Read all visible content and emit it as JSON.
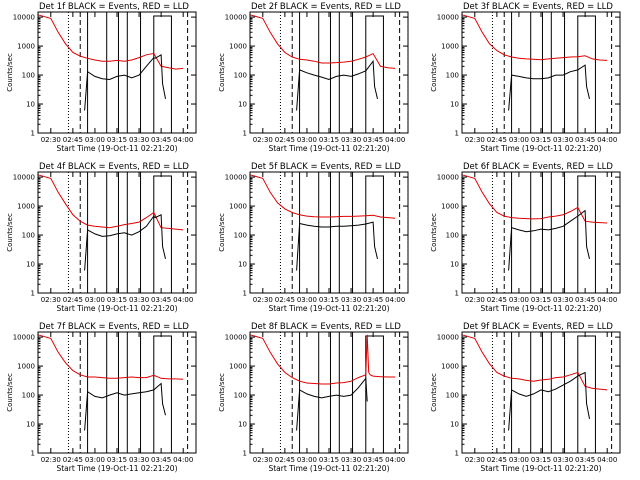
{
  "figure": {
    "xlabel": "Start Time (19-Oct-11 02:21:20)",
    "ylabel": "Counts/sec",
    "x_ticks": [
      "02:30",
      "02:45",
      "03:00",
      "03:15",
      "03:30",
      "03:45",
      "04:00"
    ],
    "y_ticks": [
      "1",
      "10",
      "100",
      "1000",
      "10000"
    ],
    "colors": {
      "events": "#000000",
      "lld": "#e00000"
    }
  },
  "chart_data": [
    {
      "type": "line",
      "title": "Det 1f BLACK = Events, RED = LLD",
      "xlabel": "Start Time (19-Oct-11 02:21:20)",
      "ylabel": "Counts/sec",
      "xlim": [
        -8.7,
        98.7
      ],
      "ylim": [
        1,
        15000
      ],
      "yscale": "log",
      "dotted": [
        12
      ],
      "dashed": [
        20,
        93
      ],
      "solid": [
        25,
        38,
        46,
        52,
        61
      ],
      "bracket": [
        70,
        82
      ],
      "series": [
        {
          "name": "LLD",
          "x": [
            -8.7,
            0,
            5,
            10,
            15,
            20,
            25,
            30,
            35,
            40,
            45,
            50,
            55,
            60,
            65,
            70,
            75,
            80,
            85,
            90
          ],
          "values": [
            12000,
            9000,
            3000,
            1200,
            600,
            450,
            380,
            330,
            300,
            300,
            320,
            300,
            330,
            400,
            500,
            560,
            200,
            180,
            160,
            170
          ]
        },
        {
          "name": "Events",
          "x": [
            23,
            25,
            30,
            35,
            40,
            45,
            50,
            55,
            60,
            65,
            70,
            71,
            75,
            76,
            78
          ],
          "values": [
            6,
            130,
            90,
            75,
            70,
            90,
            100,
            80,
            100,
            200,
            400,
            380,
            500,
            50,
            15
          ]
        }
      ]
    },
    {
      "type": "line",
      "title": "Det 2f BLACK = Events, RED = LLD",
      "xlabel": "Start Time (19-Oct-11 02:21:20)",
      "ylabel": "Counts/sec",
      "xlim": [
        -8.7,
        98.7
      ],
      "ylim": [
        1,
        15000
      ],
      "yscale": "log",
      "dotted": [
        12
      ],
      "dashed": [
        20,
        93
      ],
      "solid": [
        25,
        38,
        46,
        52,
        61
      ],
      "bracket": [
        70,
        82
      ],
      "series": [
        {
          "name": "LLD",
          "x": [
            -8.7,
            0,
            5,
            10,
            15,
            20,
            25,
            30,
            35,
            40,
            45,
            50,
            55,
            60,
            65,
            70,
            75,
            80,
            85,
            90
          ],
          "values": [
            12000,
            9000,
            3000,
            1200,
            600,
            420,
            350,
            330,
            300,
            260,
            260,
            270,
            280,
            300,
            350,
            420,
            550,
            200,
            180,
            170
          ]
        },
        {
          "name": "Events",
          "x": [
            23,
            25,
            30,
            35,
            40,
            45,
            50,
            55,
            60,
            65,
            70,
            75,
            76,
            78
          ],
          "values": [
            6,
            150,
            120,
            100,
            85,
            70,
            90,
            100,
            90,
            110,
            140,
            300,
            40,
            15
          ]
        }
      ]
    },
    {
      "type": "line",
      "title": "Det 3f BLACK = Events, RED = LLD",
      "xlabel": "Start Time (19-Oct-11 02:21:20)",
      "ylabel": "Counts/sec",
      "xlim": [
        -8.7,
        98.7
      ],
      "ylim": [
        1,
        15000
      ],
      "yscale": "log",
      "dotted": [
        12
      ],
      "dashed": [
        20,
        93
      ],
      "solid": [
        25,
        38,
        46,
        52,
        61
      ],
      "bracket": [
        70,
        82
      ],
      "series": [
        {
          "name": "LLD",
          "x": [
            -8.7,
            0,
            5,
            10,
            15,
            20,
            25,
            30,
            35,
            40,
            45,
            50,
            55,
            60,
            65,
            70,
            75,
            80,
            85,
            90
          ],
          "values": [
            12000,
            9000,
            3000,
            1200,
            700,
            500,
            420,
            380,
            360,
            350,
            340,
            360,
            380,
            400,
            420,
            430,
            460,
            360,
            330,
            320
          ]
        },
        {
          "name": "Events",
          "x": [
            23,
            25,
            30,
            35,
            40,
            45,
            50,
            55,
            60,
            65,
            70,
            75,
            76,
            78
          ],
          "values": [
            6,
            100,
            90,
            80,
            75,
            75,
            80,
            100,
            100,
            130,
            150,
            220,
            40,
            15
          ]
        }
      ]
    },
    {
      "type": "line",
      "title": "Det 4f BLACK = Events, RED = LLD",
      "xlabel": "Start Time (19-Oct-11 02:21:20)",
      "ylabel": "Counts/sec",
      "xlim": [
        -8.7,
        98.7
      ],
      "ylim": [
        1,
        15000
      ],
      "yscale": "log",
      "dotted": [
        12
      ],
      "dashed": [
        20,
        93
      ],
      "solid": [
        25,
        38,
        46,
        52,
        61
      ],
      "bracket": [
        70,
        82
      ],
      "series": [
        {
          "name": "LLD",
          "x": [
            -8.7,
            0,
            5,
            10,
            15,
            20,
            25,
            30,
            35,
            40,
            45,
            50,
            55,
            60,
            65,
            70,
            75,
            80,
            85,
            90
          ],
          "values": [
            12000,
            9000,
            3000,
            1200,
            500,
            300,
            220,
            200,
            190,
            180,
            200,
            230,
            250,
            280,
            400,
            600,
            180,
            170,
            160,
            150
          ]
        },
        {
          "name": "Events",
          "x": [
            23,
            25,
            30,
            35,
            40,
            45,
            50,
            55,
            60,
            65,
            70,
            71,
            75,
            76,
            78
          ],
          "values": [
            6,
            150,
            110,
            90,
            95,
            110,
            120,
            100,
            130,
            200,
            450,
            400,
            500,
            40,
            15
          ]
        }
      ]
    },
    {
      "type": "line",
      "title": "Det 5f BLACK = Events, RED = LLD",
      "xlabel": "Start Time (19-Oct-11 02:21:20)",
      "ylabel": "Counts/sec",
      "xlim": [
        -8.7,
        98.7
      ],
      "ylim": [
        1,
        15000
      ],
      "yscale": "log",
      "dotted": [
        12
      ],
      "dashed": [
        20,
        93
      ],
      "solid": [
        25,
        38,
        46,
        52,
        61
      ],
      "bracket": [
        70,
        82
      ],
      "series": [
        {
          "name": "LLD",
          "x": [
            -8.7,
            0,
            5,
            10,
            15,
            20,
            25,
            30,
            35,
            40,
            45,
            50,
            55,
            60,
            65,
            70,
            75,
            80,
            85,
            90
          ],
          "values": [
            12000,
            9000,
            3000,
            1300,
            800,
            600,
            500,
            450,
            430,
            420,
            420,
            430,
            440,
            440,
            450,
            460,
            480,
            420,
            400,
            380
          ]
        },
        {
          "name": "Events",
          "x": [
            23,
            25,
            30,
            35,
            40,
            45,
            50,
            55,
            60,
            65,
            70,
            75,
            76,
            78
          ],
          "values": [
            6,
            250,
            220,
            200,
            190,
            190,
            200,
            200,
            210,
            220,
            240,
            280,
            40,
            15
          ]
        }
      ]
    },
    {
      "type": "line",
      "title": "Det 6f BLACK = Events, RED = LLD",
      "xlabel": "Start Time (19-Oct-11 02:21:20)",
      "ylabel": "Counts/sec",
      "xlim": [
        -8.7,
        98.7
      ],
      "ylim": [
        1,
        15000
      ],
      "yscale": "log",
      "dotted": [
        12
      ],
      "dashed": [
        20,
        93
      ],
      "solid": [
        25,
        38,
        46,
        52,
        61
      ],
      "bracket": [
        70,
        82
      ],
      "series": [
        {
          "name": "LLD",
          "x": [
            -8.7,
            0,
            5,
            10,
            15,
            20,
            25,
            30,
            35,
            40,
            45,
            50,
            55,
            60,
            65,
            70,
            75,
            80,
            85,
            90
          ],
          "values": [
            12000,
            9000,
            3000,
            1200,
            600,
            450,
            400,
            380,
            370,
            360,
            370,
            420,
            450,
            500,
            650,
            900,
            300,
            280,
            270,
            260
          ]
        },
        {
          "name": "Events",
          "x": [
            23,
            25,
            30,
            35,
            40,
            45,
            50,
            55,
            60,
            65,
            70,
            75,
            76,
            78
          ],
          "values": [
            6,
            180,
            150,
            130,
            140,
            160,
            150,
            170,
            200,
            300,
            450,
            700,
            40,
            15
          ]
        }
      ]
    },
    {
      "type": "line",
      "title": "Det 7f BLACK = Events, RED = LLD",
      "xlabel": "Start Time (19-Oct-11 02:21:20)",
      "ylabel": "Counts/sec",
      "xlim": [
        -8.7,
        98.7
      ],
      "ylim": [
        1,
        15000
      ],
      "yscale": "log",
      "dotted": [
        12
      ],
      "dashed": [
        20,
        93
      ],
      "solid": [
        25,
        38,
        46,
        52,
        61
      ],
      "bracket": [
        70,
        82
      ],
      "series": [
        {
          "name": "LLD",
          "x": [
            -8.7,
            0,
            5,
            10,
            15,
            20,
            25,
            30,
            35,
            40,
            45,
            50,
            55,
            60,
            65,
            70,
            75,
            80,
            85,
            90
          ],
          "values": [
            12000,
            9000,
            3000,
            1300,
            700,
            500,
            420,
            420,
            400,
            380,
            380,
            400,
            420,
            400,
            400,
            480,
            380,
            360,
            360,
            350
          ]
        },
        {
          "name": "Events",
          "x": [
            23,
            25,
            30,
            35,
            40,
            45,
            50,
            55,
            60,
            65,
            70,
            75,
            76,
            78
          ],
          "values": [
            6,
            130,
            90,
            80,
            100,
            120,
            100,
            110,
            120,
            130,
            150,
            250,
            50,
            20
          ]
        }
      ]
    },
    {
      "type": "line",
      "title": "Det 8f BLACK = Events, RED = LLD",
      "xlabel": "Start Time (19-Oct-11 02:21:20)",
      "ylabel": "Counts/sec",
      "xlim": [
        -8.7,
        98.7
      ],
      "ylim": [
        1,
        15000
      ],
      "yscale": "log",
      "dotted": [
        12
      ],
      "dashed": [
        20,
        93
      ],
      "solid": [
        25,
        38,
        46,
        52,
        61
      ],
      "bracket": [
        70,
        82
      ],
      "series": [
        {
          "name": "LLD",
          "x": [
            -8.7,
            0,
            5,
            10,
            15,
            20,
            25,
            30,
            35,
            40,
            45,
            50,
            55,
            60,
            65,
            70,
            71,
            72,
            73,
            75,
            80,
            85,
            90
          ],
          "values": [
            12000,
            9000,
            3000,
            1200,
            600,
            400,
            300,
            260,
            250,
            240,
            240,
            260,
            270,
            300,
            400,
            500,
            12000,
            600,
            500,
            450,
            430,
            420,
            420
          ]
        },
        {
          "name": "Events",
          "x": [
            23,
            25,
            30,
            35,
            40,
            45,
            50,
            55,
            60,
            65,
            70,
            71
          ],
          "values": [
            6,
            150,
            110,
            90,
            80,
            90,
            100,
            90,
            100,
            180,
            380,
            60
          ]
        }
      ]
    },
    {
      "type": "line",
      "title": "Det 9f BLACK = Events, RED = LLD",
      "xlabel": "Start Time (19-Oct-11 02:21:20)",
      "ylabel": "Counts/sec",
      "xlim": [
        -8.7,
        98.7
      ],
      "ylim": [
        1,
        15000
      ],
      "yscale": "log",
      "dotted": [
        12
      ],
      "dashed": [
        20,
        93
      ],
      "solid": [
        25,
        38,
        46,
        52,
        61
      ],
      "bracket": [
        70,
        82
      ],
      "series": [
        {
          "name": "LLD",
          "x": [
            -8.7,
            0,
            5,
            10,
            15,
            20,
            25,
            30,
            35,
            40,
            45,
            50,
            55,
            60,
            65,
            70,
            75,
            80,
            85,
            90
          ],
          "values": [
            12000,
            9000,
            3000,
            1200,
            600,
            450,
            380,
            360,
            320,
            300,
            330,
            350,
            400,
            420,
            500,
            600,
            200,
            170,
            160,
            150
          ]
        },
        {
          "name": "Events",
          "x": [
            23,
            25,
            30,
            35,
            40,
            45,
            50,
            55,
            60,
            65,
            70,
            75,
            76,
            78
          ],
          "values": [
            6,
            150,
            110,
            90,
            110,
            150,
            130,
            160,
            220,
            300,
            450,
            600,
            50,
            15
          ]
        }
      ]
    }
  ]
}
